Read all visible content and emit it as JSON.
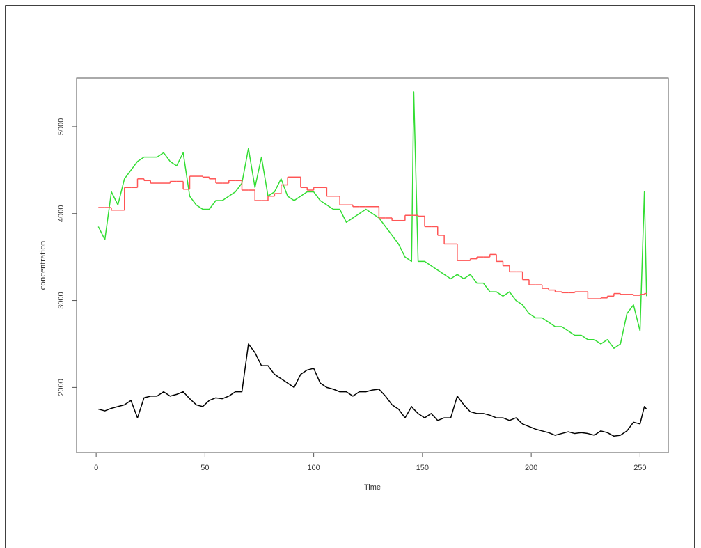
{
  "chart_data": {
    "type": "line",
    "xlabel": "Time",
    "ylabel": "concentration",
    "x": [
      1,
      4,
      7,
      10,
      13,
      16,
      19,
      22,
      25,
      28,
      31,
      34,
      37,
      40,
      43,
      46,
      49,
      52,
      55,
      58,
      61,
      64,
      67,
      70,
      73,
      76,
      79,
      82,
      85,
      88,
      91,
      94,
      97,
      100,
      103,
      106,
      109,
      112,
      115,
      118,
      121,
      124,
      127,
      130,
      133,
      136,
      139,
      142,
      145,
      146,
      148,
      151,
      154,
      157,
      160,
      163,
      166,
      169,
      172,
      175,
      178,
      181,
      184,
      187,
      190,
      193,
      196,
      199,
      202,
      205,
      208,
      211,
      214,
      217,
      220,
      223,
      226,
      229,
      232,
      235,
      238,
      241,
      244,
      247,
      250,
      252,
      253
    ],
    "series": [
      {
        "color": "#000000",
        "values": [
          1750,
          1730,
          1760,
          1780,
          1800,
          1850,
          1650,
          1880,
          1900,
          1900,
          1950,
          1900,
          1920,
          1950,
          1870,
          1800,
          1780,
          1850,
          1880,
          1870,
          1900,
          1950,
          1950,
          2500,
          2400,
          2250,
          2250,
          2150,
          2100,
          2050,
          2000,
          2150,
          2200,
          2220,
          2050,
          2000,
          1980,
          1950,
          1950,
          1900,
          1950,
          1950,
          1970,
          1980,
          1900,
          1800,
          1750,
          1650,
          1780,
          1750,
          1700,
          1650,
          1700,
          1620,
          1650,
          1650,
          1900,
          1800,
          1720,
          1700,
          1700,
          1680,
          1650,
          1650,
          1620,
          1650,
          1580,
          1550,
          1520,
          1500,
          1480,
          1450,
          1470,
          1490,
          1470,
          1480,
          1470,
          1450,
          1500,
          1480,
          1440,
          1450,
          1500,
          1600,
          1580,
          1780,
          1750
        ]
      },
      {
        "color": "#33dd33",
        "values": [
          3850,
          3700,
          4250,
          4100,
          4400,
          4500,
          4600,
          4650,
          4650,
          4650,
          4700,
          4600,
          4550,
          4700,
          4200,
          4100,
          4050,
          4050,
          4150,
          4150,
          4200,
          4250,
          4350,
          4750,
          4300,
          4650,
          4200,
          4250,
          4400,
          4200,
          4150,
          4200,
          4250,
          4250,
          4150,
          4100,
          4050,
          4050,
          3900,
          3950,
          4000,
          4050,
          4000,
          3950,
          3850,
          3750,
          3650,
          3500,
          3450,
          5400,
          3450,
          3450,
          3400,
          3350,
          3300,
          3250,
          3300,
          3250,
          3300,
          3200,
          3200,
          3100,
          3100,
          3050,
          3100,
          3000,
          2950,
          2850,
          2800,
          2800,
          2750,
          2700,
          2700,
          2650,
          2600,
          2600,
          2550,
          2550,
          2500,
          2550,
          2450,
          2500,
          2850,
          2950,
          2650,
          4250,
          3050
        ]
      },
      {
        "color": "#ff5555",
        "step": true,
        "values": [
          4070,
          4070,
          4040,
          4040,
          4300,
          4300,
          4400,
          4380,
          4350,
          4350,
          4350,
          4370,
          4370,
          4280,
          4430,
          4430,
          4420,
          4400,
          4350,
          4350,
          4380,
          4380,
          4270,
          4270,
          4150,
          4150,
          4200,
          4230,
          4330,
          4420,
          4420,
          4300,
          4270,
          4300,
          4300,
          4200,
          4200,
          4100,
          4100,
          4080,
          4080,
          4080,
          4080,
          3950,
          3950,
          3920,
          3920,
          3980,
          3980,
          3980,
          3970,
          3850,
          3850,
          3750,
          3650,
          3650,
          3460,
          3460,
          3480,
          3500,
          3500,
          3530,
          3450,
          3400,
          3330,
          3330,
          3240,
          3180,
          3180,
          3140,
          3120,
          3100,
          3090,
          3090,
          3100,
          3100,
          3020,
          3020,
          3030,
          3050,
          3080,
          3070,
          3070,
          3060,
          3070,
          3080,
          3080
        ]
      }
    ],
    "xlim": [
      -9,
      263
    ],
    "xticks": [
      0,
      50,
      100,
      150,
      200,
      250
    ],
    "ylim": [
      1250,
      5560
    ],
    "yticks": [
      2000,
      3000,
      4000,
      5000
    ]
  }
}
